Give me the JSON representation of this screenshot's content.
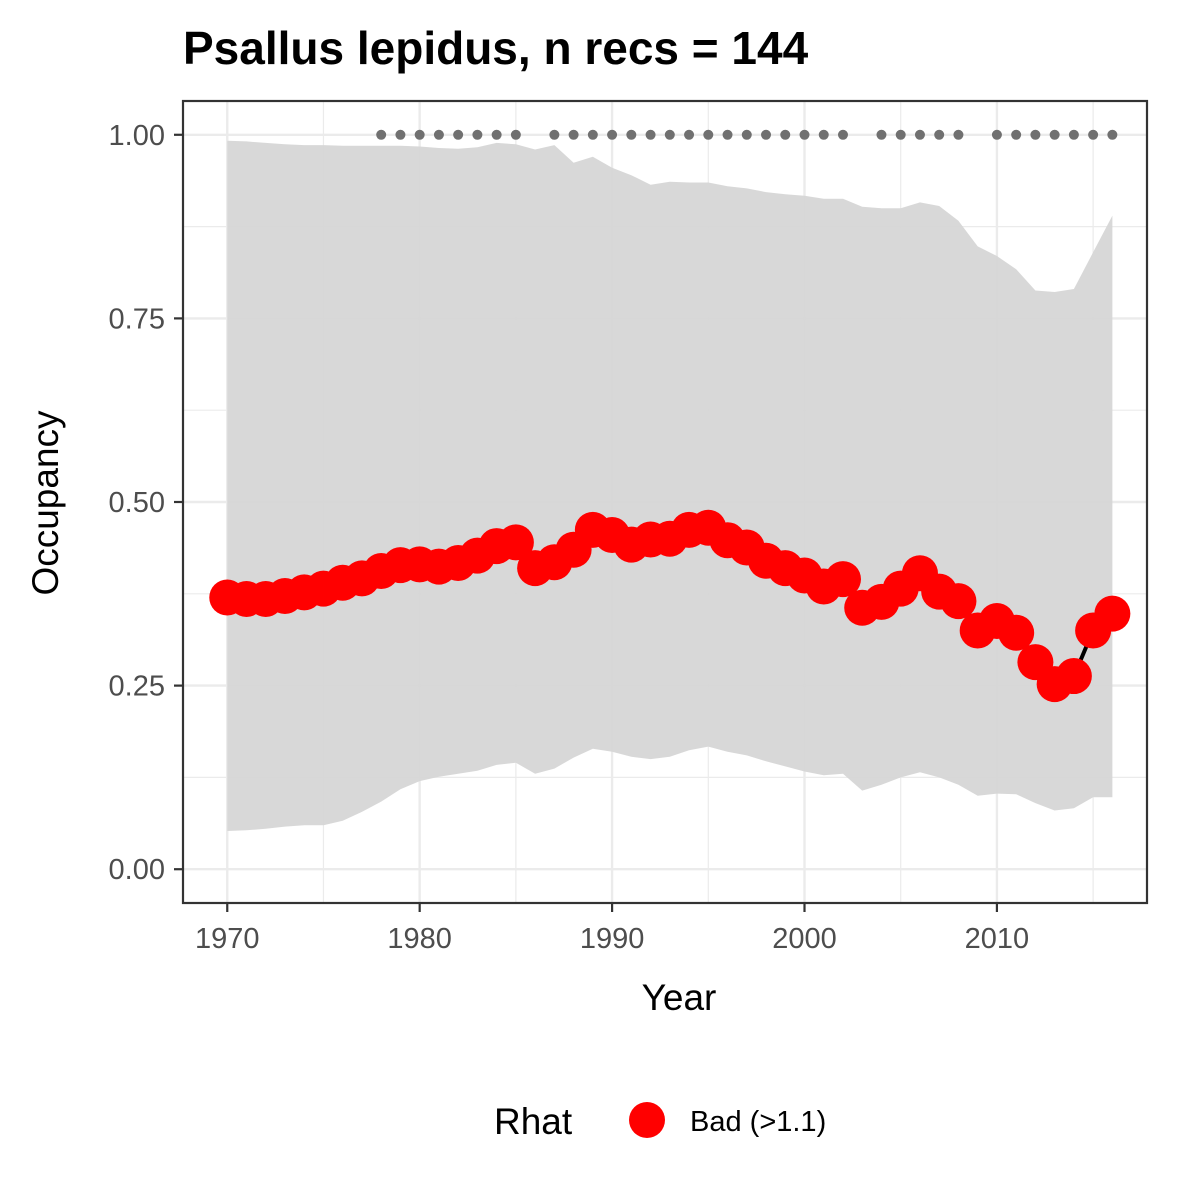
{
  "chart_data": {
    "type": "line",
    "title": "Psallus lepidus, n recs = 144",
    "xlabel": "Year",
    "ylabel": "Occupancy",
    "xlim": [
      1967.7,
      2017.8
    ],
    "ylim": [
      -0.046,
      1.046
    ],
    "x_ticks": [
      1970,
      1980,
      1990,
      2000,
      2010
    ],
    "x_tick_labels": [
      "1970",
      "1980",
      "1990",
      "2000",
      "2010"
    ],
    "y_ticks": [
      0,
      0.25,
      0.5,
      0.75,
      1.0
    ],
    "y_tick_labels": [
      "0.00",
      "0.25",
      "0.50",
      "0.75",
      "1.00"
    ],
    "grid": true,
    "legend": {
      "title": "Rhat",
      "placement": "bottom",
      "entries": [
        "Bad (>1.1)"
      ]
    },
    "colors": {
      "points": "#ff0000",
      "line": "#000000",
      "ribbon": "#d6d6d6",
      "record_dots": "#707070",
      "panel_border": "#333333",
      "grid": "#ebebeb"
    },
    "years": [
      1970,
      1971,
      1972,
      1973,
      1974,
      1975,
      1976,
      1977,
      1978,
      1979,
      1980,
      1981,
      1982,
      1983,
      1984,
      1985,
      1986,
      1987,
      1988,
      1989,
      1990,
      1991,
      1992,
      1993,
      1994,
      1995,
      1996,
      1997,
      1998,
      1999,
      2000,
      2001,
      2002,
      2003,
      2004,
      2005,
      2006,
      2007,
      2008,
      2009,
      2010,
      2011,
      2012,
      2013,
      2014,
      2015,
      2016
    ],
    "occupancy": [
      0.37,
      0.368,
      0.368,
      0.372,
      0.377,
      0.382,
      0.39,
      0.396,
      0.406,
      0.414,
      0.415,
      0.412,
      0.417,
      0.427,
      0.44,
      0.445,
      0.41,
      0.418,
      0.435,
      0.462,
      0.455,
      0.442,
      0.449,
      0.45,
      0.462,
      0.465,
      0.448,
      0.438,
      0.42,
      0.41,
      0.4,
      0.385,
      0.395,
      0.356,
      0.364,
      0.382,
      0.403,
      0.378,
      0.365,
      0.325,
      0.338,
      0.322,
      0.282,
      0.252,
      0.263,
      0.325,
      0.348
    ],
    "upper": [
      0.992,
      0.991,
      0.989,
      0.987,
      0.986,
      0.986,
      0.985,
      0.985,
      0.985,
      0.985,
      0.984,
      0.982,
      0.981,
      0.983,
      0.989,
      0.987,
      0.98,
      0.986,
      0.962,
      0.97,
      0.955,
      0.945,
      0.932,
      0.936,
      0.935,
      0.935,
      0.93,
      0.927,
      0.922,
      0.919,
      0.917,
      0.913,
      0.913,
      0.902,
      0.9,
      0.9,
      0.908,
      0.903,
      0.883,
      0.848,
      0.835,
      0.817,
      0.788,
      0.786,
      0.79,
      0.84,
      0.89
    ],
    "lower": [
      0.052,
      0.053,
      0.055,
      0.058,
      0.06,
      0.06,
      0.066,
      0.078,
      0.092,
      0.109,
      0.12,
      0.126,
      0.13,
      0.134,
      0.142,
      0.145,
      0.13,
      0.137,
      0.152,
      0.164,
      0.16,
      0.153,
      0.15,
      0.153,
      0.162,
      0.167,
      0.16,
      0.155,
      0.147,
      0.14,
      0.133,
      0.128,
      0.13,
      0.107,
      0.115,
      0.125,
      0.132,
      0.125,
      0.115,
      0.1,
      0.103,
      0.102,
      0.09,
      0.08,
      0.083,
      0.098,
      0.098
    ],
    "record_years": [
      1978,
      1979,
      1980,
      1981,
      1982,
      1983,
      1984,
      1985,
      1987,
      1988,
      1989,
      1990,
      1991,
      1992,
      1993,
      1994,
      1995,
      1996,
      1997,
      1998,
      1999,
      2000,
      2001,
      2002,
      2004,
      2005,
      2006,
      2007,
      2008,
      2010,
      2011,
      2012,
      2013,
      2014,
      2015,
      2016
    ],
    "record_level": 1.0
  }
}
